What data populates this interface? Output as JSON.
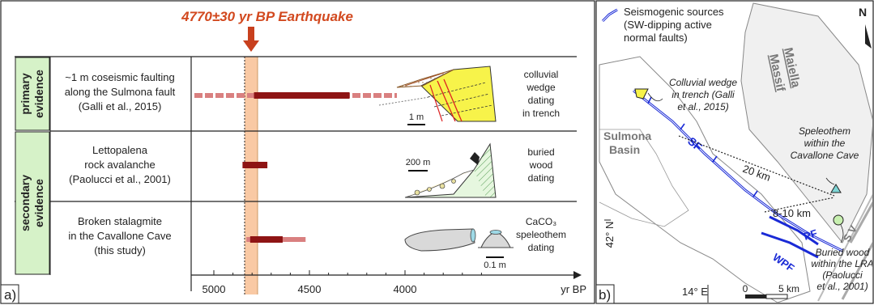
{
  "panel_a": {
    "title": "4770±30 yr BP Earthquake",
    "panel_label": "a)",
    "groups": [
      {
        "label_line1": "primary",
        "label_line2": "evidence"
      },
      {
        "label_line1": "secondary",
        "label_line2": "evidence"
      }
    ],
    "rows": [
      {
        "desc": [
          "~1 m coseismic faulting",
          "along the Sulmona fault",
          "(Galli et al., 2015)"
        ],
        "method": [
          "colluvial",
          "wedge",
          "dating",
          "in trench"
        ],
        "scale": "1 m",
        "range_light": [
          5000,
          4000
        ],
        "range_dark": [
          4790,
          4290
        ]
      },
      {
        "desc": [
          "Lettopalena",
          "rock avalanche",
          "(Paolucci et al., 2001)"
        ],
        "method": [
          "buried",
          "wood",
          "dating"
        ],
        "scale": "200 m",
        "range_light": null,
        "range_dark": [
          4850,
          4720
        ]
      },
      {
        "desc": [
          "Broken stalagmite",
          "in the Cavallone Cave",
          "(this study)"
        ],
        "method": [
          "CaCO₃",
          "speleothem",
          "dating"
        ],
        "scale": "0.1 m",
        "range_light": [
          4830,
          4520
        ],
        "range_dark": [
          4810,
          4640
        ]
      }
    ],
    "axis": {
      "ticks": [
        "5000",
        "4500",
        "4000"
      ],
      "unit": "yr BP"
    }
  },
  "panel_b": {
    "panel_label": "b)",
    "legend_line1": "Seismogenic sources",
    "legend_line2": "(SW-dipping active",
    "legend_line3": "normal faults)",
    "massif_line1": "Maiella",
    "massif_line2": "Massif",
    "basin_line1": "Sulmona",
    "basin_line2": "Basin",
    "fault_sf": "SF",
    "fault_pf": "PF",
    "fault_wpf": "WPF",
    "fault_sv": "S V",
    "dist_20": "20 km",
    "dist_810": "8-10 km",
    "north": "N",
    "lat": "42° N",
    "lon": "14° E",
    "scale": "5 km",
    "scale_zero": "0",
    "colluvial": [
      "Colluvial wedge",
      "in trench (Galli",
      "et al., 2015)"
    ],
    "speleothem": [
      "Speleothem",
      "within the",
      "Cavallone Cave"
    ],
    "buried": [
      "Buried wood",
      "within the LRA",
      "(Paolucci",
      "et al., 2001)"
    ]
  }
}
